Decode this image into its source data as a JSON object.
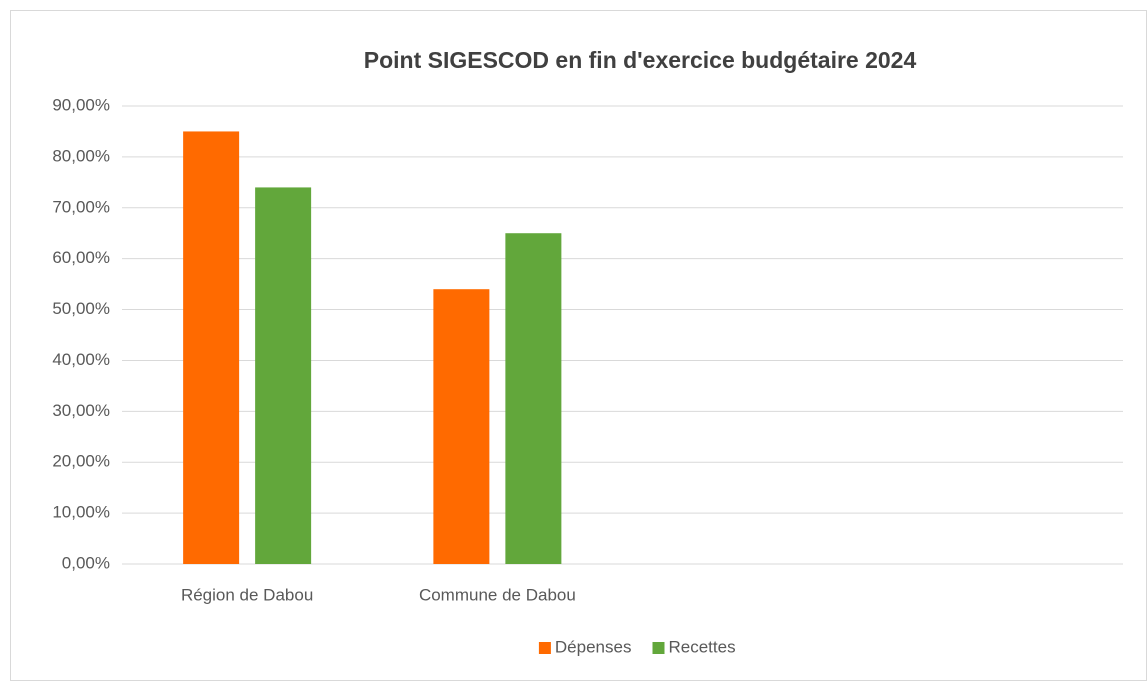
{
  "chart_data": {
    "type": "bar",
    "title": "Point SIGESCOD en fin d'exercice budgétaire 2024",
    "categories": [
      "Région de Dabou",
      "Commune de Dabou",
      null,
      null
    ],
    "series": [
      {
        "name": "Dépenses",
        "color": "#ff6a00",
        "values": [
          85,
          54,
          null,
          null
        ]
      },
      {
        "name": "Recettes",
        "color": "#62a73b",
        "values": [
          74,
          65,
          null,
          null
        ]
      }
    ],
    "ylim": [
      0,
      90
    ],
    "yticks": [
      {
        "value": 0,
        "label": "0,00%"
      },
      {
        "value": 10,
        "label": "10,00%"
      },
      {
        "value": 20,
        "label": "20,00%"
      },
      {
        "value": 30,
        "label": "30,00%"
      },
      {
        "value": 40,
        "label": "40,00%"
      },
      {
        "value": 50,
        "label": "50,00%"
      },
      {
        "value": 60,
        "label": "60,00%"
      },
      {
        "value": 70,
        "label": "70,00%"
      },
      {
        "value": 80,
        "label": "80,00%"
      },
      {
        "value": 90,
        "label": "90,00%"
      }
    ],
    "grid": true,
    "legend": "bottom"
  }
}
